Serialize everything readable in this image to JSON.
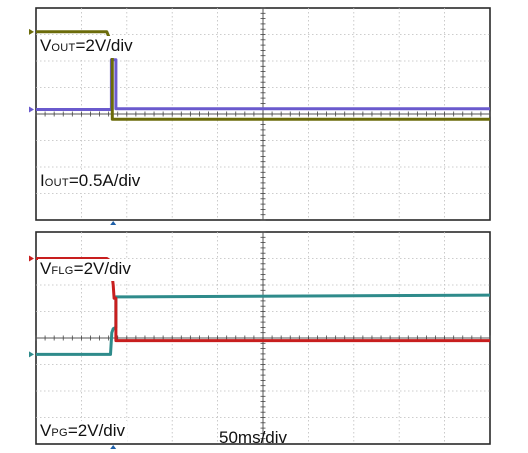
{
  "chart_data": {
    "type": "line",
    "time_scale_label": "50ms/div",
    "panels": [
      {
        "name": "top",
        "channel_labels": [
          {
            "key": "vout",
            "main": "V",
            "sub": "OUT",
            "tail": "=2V/div"
          },
          {
            "key": "iout",
            "main": "I",
            "sub": "OUT",
            "tail": "=0.5A/div"
          }
        ],
        "series": [
          {
            "key": "iout",
            "color": "#6a5acd",
            "x_div": [
              0,
              1.64,
              1.66,
              1.66,
              1.76,
              1.76,
              10
            ],
            "y_div": [
              0.17,
              0.17,
              0.2,
              2.05,
              2.05,
              0.2,
              0.2
            ]
          },
          {
            "key": "vout",
            "color": "#6b6b0a",
            "x_div": [
              0,
              1.56,
              1.68,
              1.68,
              10
            ],
            "y_div": [
              3.1,
              3.1,
              2.6,
              -0.2,
              -0.2
            ]
          }
        ]
      },
      {
        "name": "bottom",
        "channel_labels": [
          {
            "key": "vflg",
            "main": "V",
            "sub": "FLG",
            "tail": "=2V/div"
          },
          {
            "key": "vpg",
            "main": "V",
            "sub": "PG",
            "tail": "=2V/div"
          }
        ],
        "series": [
          {
            "key": "vflg",
            "color": "#2e8b8b",
            "x_div": [
              0,
              1.64,
              1.67,
              1.7,
              1.76,
              1.76,
              10
            ],
            "y_div": [
              -0.62,
              -0.62,
              0.2,
              0.35,
              0.4,
              1.55,
              1.62
            ]
          },
          {
            "key": "vpg",
            "color": "#c81e1e",
            "x_div": [
              0,
              1.56,
              1.64,
              1.7,
              1.72,
              1.76,
              1.76,
              10
            ],
            "y_div": [
              3.0,
              3.0,
              2.9,
              2.0,
              1.5,
              1.5,
              -0.1,
              -0.1
            ]
          }
        ]
      }
    ],
    "grid": true
  }
}
